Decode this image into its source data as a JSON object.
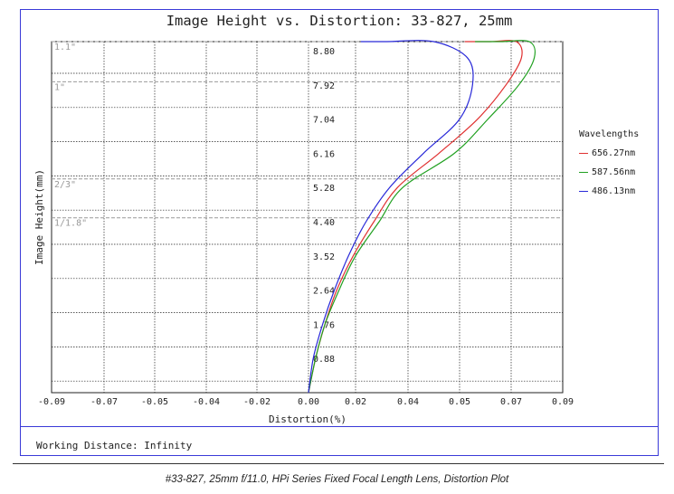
{
  "chart_data": {
    "type": "line",
    "title": "Image Height vs. Distortion: 33-827, 25mm",
    "xlabel": "Distortion(%)",
    "ylabel": "Image Height(mm)",
    "xlim": [
      -0.09,
      0.09
    ],
    "ylim": [
      0,
      9.68
    ],
    "x_ticks": [
      "-0.09",
      "-0.07",
      "-0.05",
      "-0.04",
      "-0.02",
      "0.00",
      "0.02",
      "0.04",
      "0.05",
      "0.07",
      "0.09"
    ],
    "x_tick_values": [
      -0.09,
      -0.07,
      -0.05,
      -0.04,
      -0.02,
      0.0,
      0.02,
      0.04,
      0.05,
      0.07,
      0.09
    ],
    "y_ticks": [
      "0.88",
      "1.76",
      "2.64",
      "3.52",
      "4.40",
      "5.28",
      "6.16",
      "7.04",
      "7.92",
      "8.80"
    ],
    "y_tick_values": [
      0.88,
      1.76,
      2.64,
      3.52,
      4.4,
      5.28,
      6.16,
      7.04,
      7.92,
      8.8
    ],
    "sensor_markers": [
      {
        "label": "1.1\"",
        "y": 9.7
      },
      {
        "label": "1\"",
        "y": 8.0
      },
      {
        "label": "2/3\"",
        "y": 5.5
      },
      {
        "label": "1/1.8\"",
        "y": 4.5
      }
    ],
    "grid": true,
    "legend": {
      "title": "Wavelengths",
      "position": "right"
    },
    "series": [
      {
        "name": "656.27nm",
        "color": "#e03030",
        "points": [
          [
            0,
            0
          ],
          [
            0.003,
            0.88
          ],
          [
            0.007,
            1.76
          ],
          [
            0.012,
            2.64
          ],
          [
            0.019,
            3.52
          ],
          [
            0.027,
            4.4
          ],
          [
            0.036,
            5.28
          ],
          [
            0.046,
            6.16
          ],
          [
            0.057,
            7.04
          ],
          [
            0.068,
            7.92
          ],
          [
            0.074,
            8.62
          ],
          [
            0.072,
            9.2
          ],
          [
            0.062,
            9.6
          ],
          [
            0.052,
            9.7
          ]
        ]
      },
      {
        "name": "587.56nm",
        "color": "#20a020",
        "points": [
          [
            0,
            0
          ],
          [
            0.003,
            0.88
          ],
          [
            0.007,
            1.76
          ],
          [
            0.013,
            2.64
          ],
          [
            0.02,
            3.52
          ],
          [
            0.029,
            4.4
          ],
          [
            0.038,
            5.28
          ],
          [
            0.049,
            6.16
          ],
          [
            0.061,
            7.04
          ],
          [
            0.073,
            7.92
          ],
          [
            0.079,
            8.62
          ],
          [
            0.077,
            9.2
          ],
          [
            0.066,
            9.6
          ],
          [
            0.056,
            9.7
          ]
        ]
      },
      {
        "name": "486.13nm",
        "color": "#2828d8",
        "points": [
          [
            0,
            0
          ],
          [
            0.002,
            0.88
          ],
          [
            0.006,
            1.76
          ],
          [
            0.011,
            2.64
          ],
          [
            0.017,
            3.52
          ],
          [
            0.024,
            4.4
          ],
          [
            0.033,
            5.28
          ],
          [
            0.043,
            6.16
          ],
          [
            0.05,
            7.04
          ],
          [
            0.055,
            7.92
          ],
          [
            0.053,
            8.62
          ],
          [
            0.045,
            9.2
          ],
          [
            0.032,
            9.6
          ],
          [
            0.022,
            9.7
          ]
        ]
      }
    ]
  },
  "working_distance": "Working Distance: Infinity",
  "caption": "#33-827, 25mm f/11.0, HPi Series Fixed Focal Length Lens, Distortion Plot"
}
